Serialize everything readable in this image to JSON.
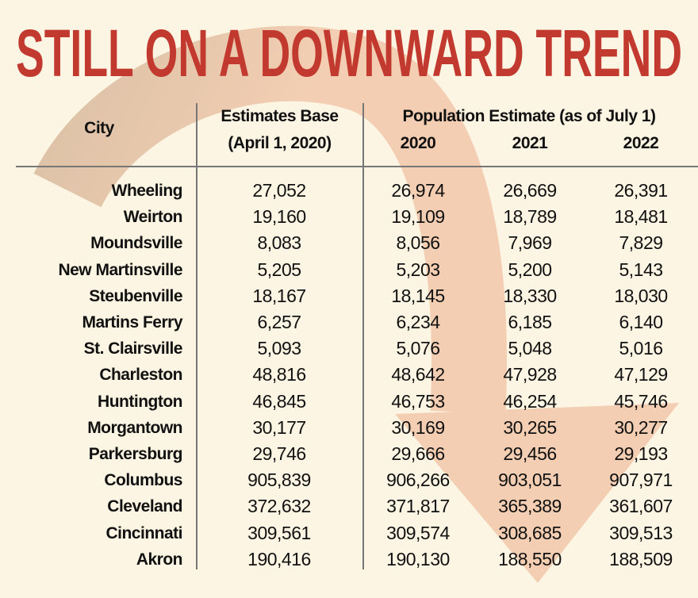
{
  "title": "STILL ON A DOWNWARD TREND",
  "colors": {
    "title": "#c23a2f",
    "background": "#fdf5e3",
    "arrow_start": "#dcc2a7",
    "arrow_end": "#f3ceb2"
  },
  "chart_data": {
    "type": "table",
    "title": "STILL ON A DOWNWARD TREND",
    "headers": {
      "city": "City",
      "base_line1": "Estimates Base",
      "base_line2": "(April 1, 2020)",
      "estimate_group": "Population Estimate (as of July 1)",
      "years": [
        "2020",
        "2021",
        "2022"
      ]
    },
    "rows": [
      {
        "city": "Wheeling",
        "values": [
          "27,052",
          "26,974",
          "26,669",
          "26,391"
        ]
      },
      {
        "city": "Weirton",
        "values": [
          "19,160",
          "19,109",
          "18,789",
          "18,481"
        ]
      },
      {
        "city": "Moundsville",
        "values": [
          "8,083",
          "8,056",
          "7,969",
          "7,829"
        ]
      },
      {
        "city": "New Martinsville",
        "values": [
          "5,205",
          "5,203",
          "5,200",
          "5,143"
        ]
      },
      {
        "city": "Steubenville",
        "values": [
          "18,167",
          "18,145",
          "18,330",
          "18,030"
        ]
      },
      {
        "city": "Martins Ferry",
        "values": [
          "6,257",
          "6,234",
          "6,185",
          "6,140"
        ]
      },
      {
        "city": "St. Clairsville",
        "values": [
          "5,093",
          "5,076",
          "5,048",
          "5,016"
        ]
      },
      {
        "city": "Charleston",
        "values": [
          "48,816",
          "48,642",
          "47,928",
          "47,129"
        ]
      },
      {
        "city": "Huntington",
        "values": [
          "46,845",
          "46,753",
          "46,254",
          "45,746"
        ]
      },
      {
        "city": "Morgantown",
        "values": [
          "30,177",
          "30,169",
          "30,265",
          "30,277"
        ]
      },
      {
        "city": "Parkersburg",
        "values": [
          "29,746",
          "29,666",
          "29,456",
          "29,193"
        ]
      },
      {
        "city": "Columbus",
        "values": [
          "905,839",
          "906,266",
          "903,051",
          "907,971"
        ]
      },
      {
        "city": "Cleveland",
        "values": [
          "372,632",
          "371,817",
          "365,389",
          "361,607"
        ]
      },
      {
        "city": "Cincinnati",
        "values": [
          "309,561",
          "309,574",
          "308,685",
          "309,513"
        ]
      },
      {
        "city": "Akron",
        "values": [
          "190,416",
          "190,130",
          "188,550",
          "188,509"
        ]
      }
    ]
  }
}
